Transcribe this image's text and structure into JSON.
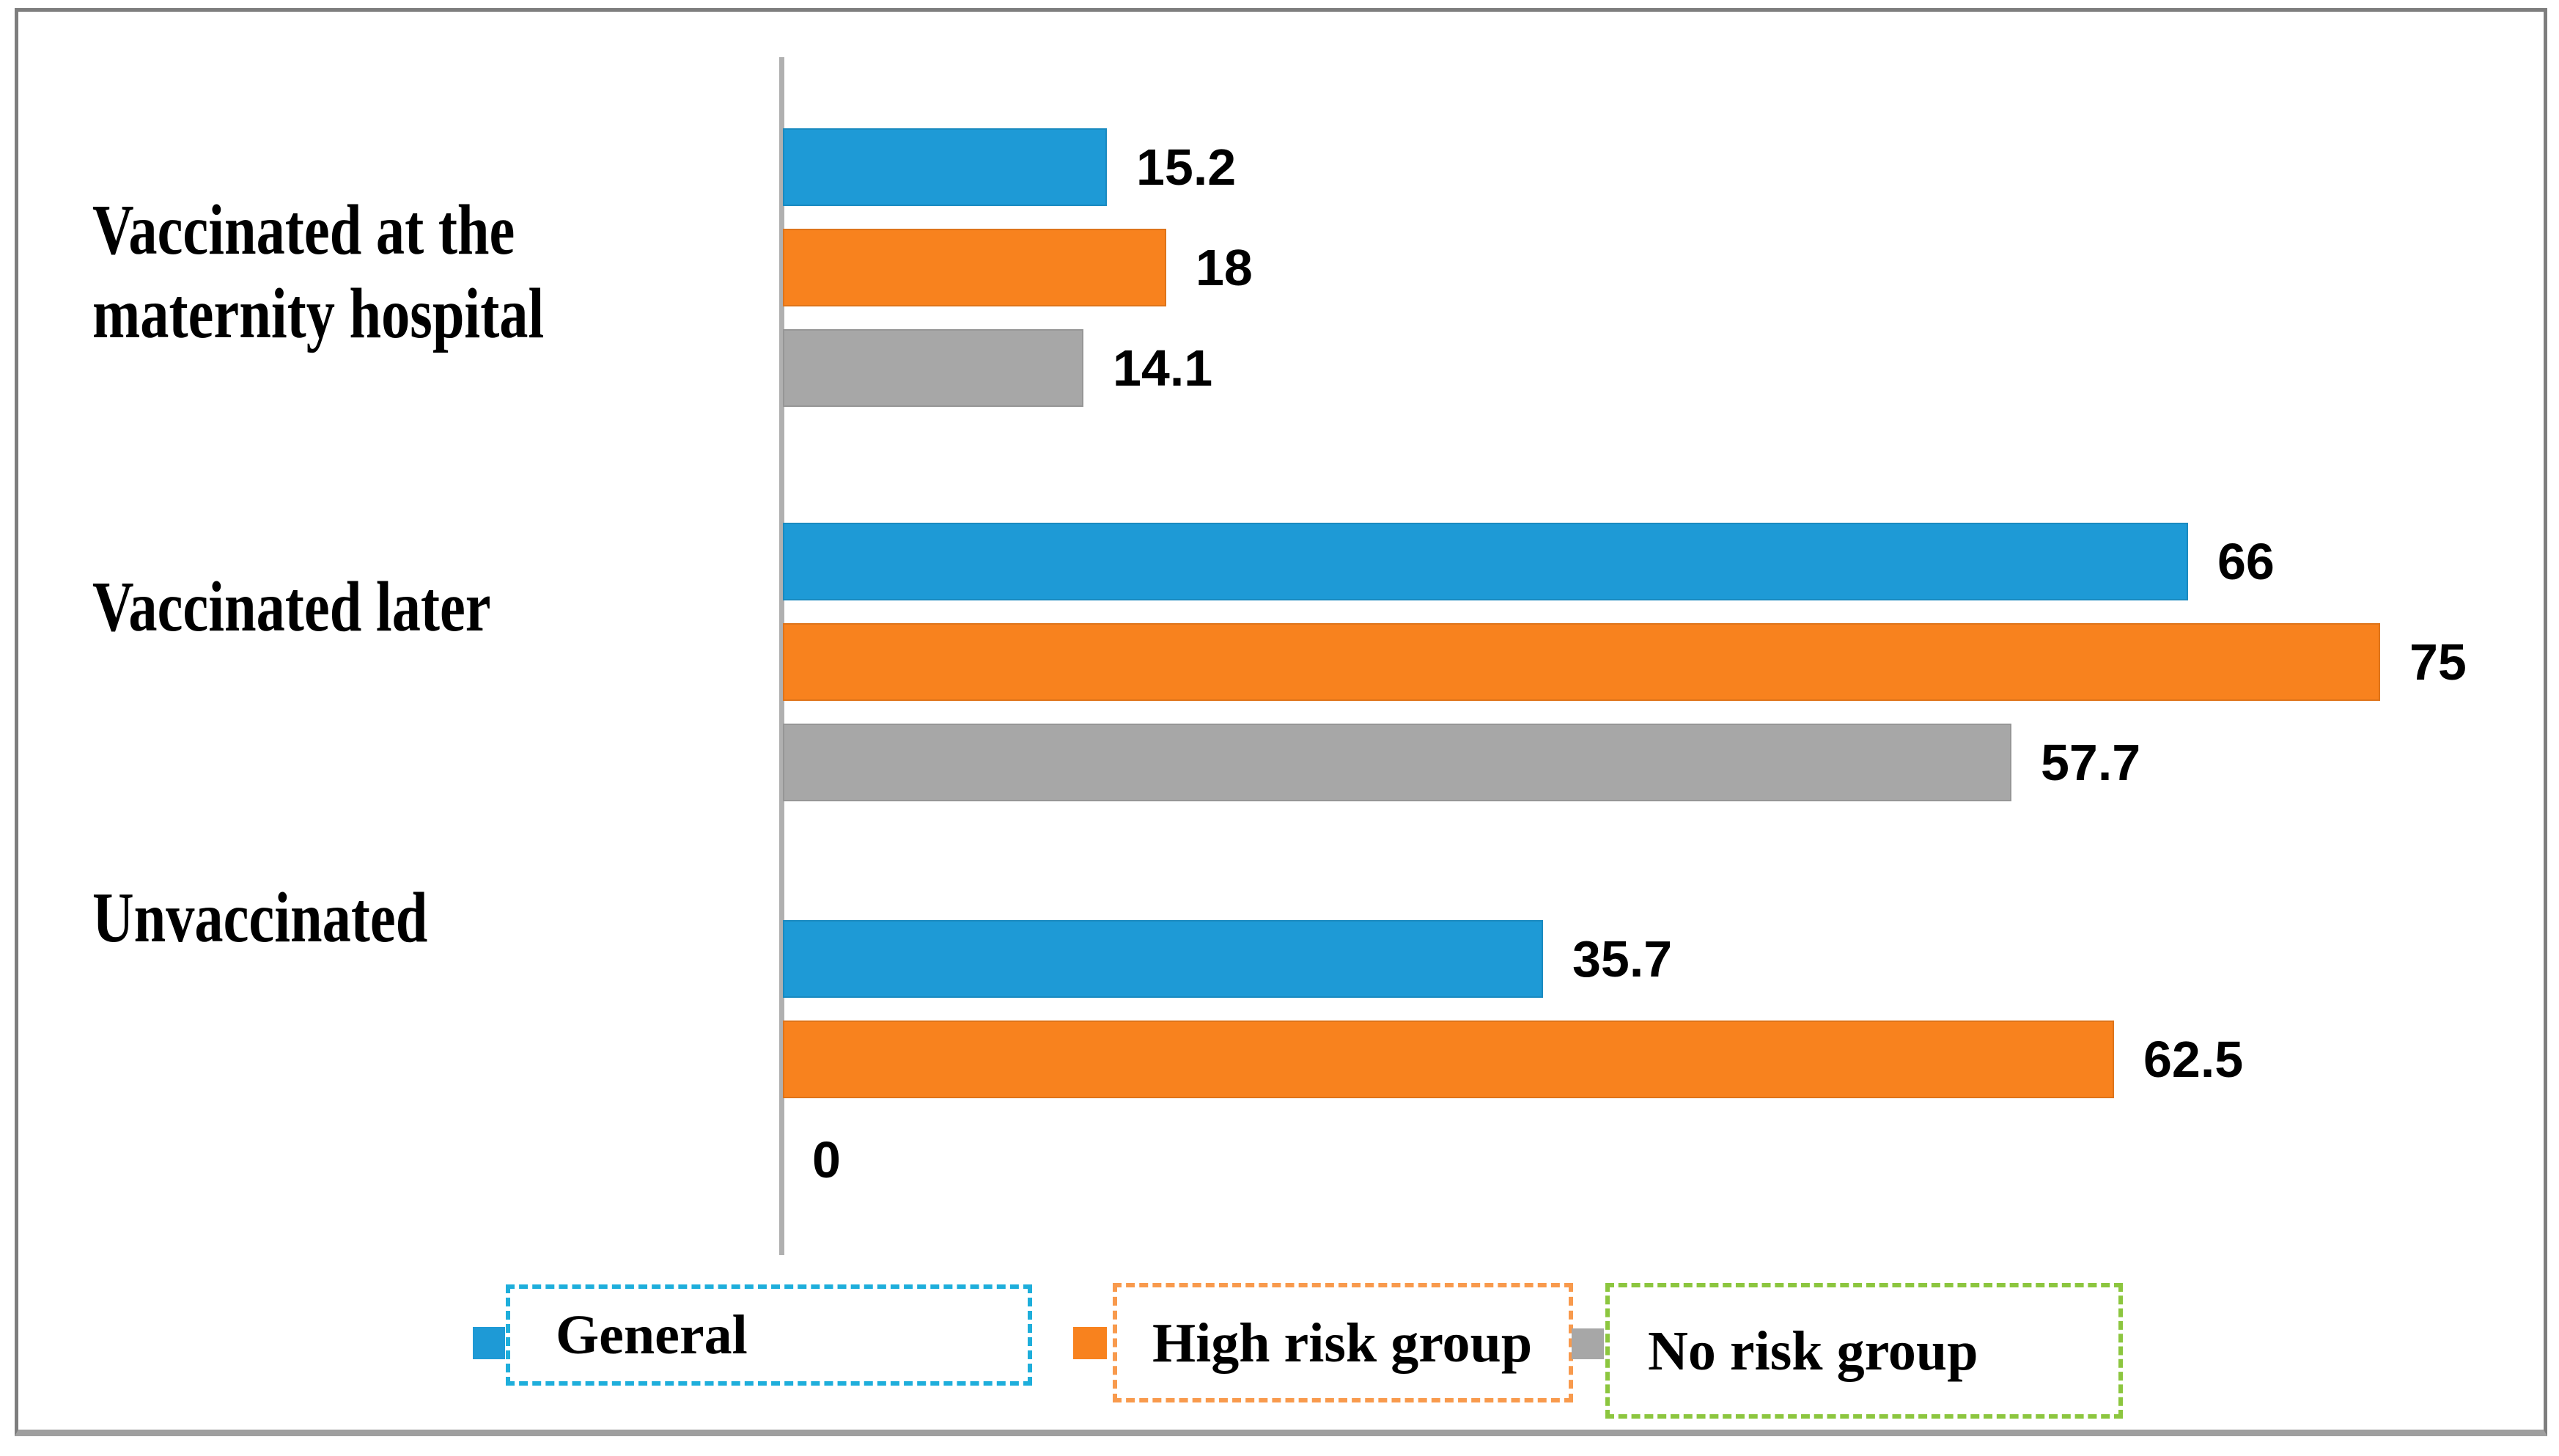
{
  "chart_data": {
    "type": "bar",
    "orientation": "horizontal",
    "title": "",
    "xlabel": "",
    "ylabel": "",
    "grid": false,
    "x_axis": {
      "min": 0,
      "max_visible": 82,
      "tick_labels_shown": []
    },
    "categories": [
      "Vaccinated at the maternity hospital",
      "Vaccinated later",
      "Unvaccinated"
    ],
    "series": [
      {
        "name": "General",
        "color": "#1e9ad6",
        "values": [
          15.2,
          66,
          35.7
        ],
        "labels": [
          "15.2",
          "66",
          "35.7"
        ]
      },
      {
        "name": "High risk group",
        "color": "#f8821e",
        "values": [
          18,
          75,
          62.5
        ],
        "labels": [
          "18",
          "75",
          "62.5"
        ]
      },
      {
        "name": "No risk group",
        "color": "#a7a7a7",
        "values": [
          14.1,
          57.7,
          0
        ],
        "labels": [
          "14.1",
          "57.7",
          "0"
        ]
      }
    ],
    "legend": {
      "position": "bottom",
      "entries": [
        {
          "label": "General",
          "marker_color": "#1e9ad6",
          "box_dash_color": "#1eaedb"
        },
        {
          "label": "High risk group",
          "marker_color": "#f8821e",
          "box_dash_color": "#f89a4d"
        },
        {
          "label": "No risk group",
          "marker_color": "#a7a7a7",
          "box_dash_color": "#8cc63f"
        }
      ]
    },
    "axis_color": "#b0b0b0",
    "frame_color": "#7e7e7e",
    "zero_label": "0"
  }
}
